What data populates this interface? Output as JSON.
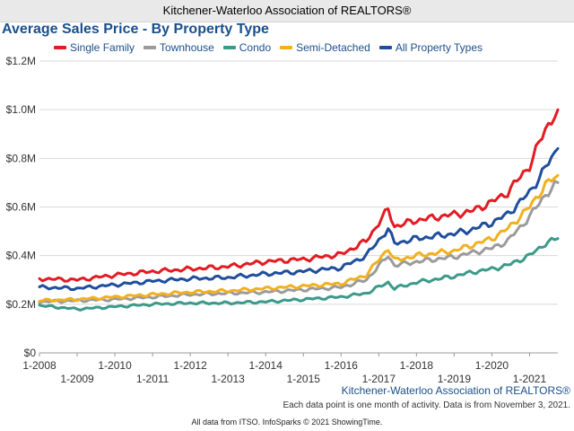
{
  "header": {
    "title": "Kitchener-Waterloo Association of REALTORS®"
  },
  "chart_data": {
    "type": "line",
    "title": "Average Sales Price - By Property Type",
    "ylim": [
      0,
      1200000
    ],
    "y_ticks": [
      0,
      200000,
      400000,
      600000,
      800000,
      1000000,
      1200000
    ],
    "y_tick_labels": [
      "$0",
      "$0.2M",
      "$0.4M",
      "$0.6M",
      "$0.8M",
      "$1.0M",
      "$1.2M"
    ],
    "x_tick_labels_upper": [
      "1-2008",
      "1-2010",
      "1-2012",
      "1-2014",
      "1-2016",
      "1-2018",
      "1-2020"
    ],
    "x_tick_labels_lower": [
      "1-2009",
      "1-2011",
      "1-2013",
      "1-2015",
      "1-2017",
      "1-2019",
      "1-2021"
    ],
    "x_range": [
      "2008-01",
      "2021-10"
    ],
    "grid": "horizontal",
    "legend_position": "top",
    "series": [
      {
        "name": "Single Family",
        "color": "#e31b23",
        "x": [
          "2008-01",
          "2009-01",
          "2010-01",
          "2011-01",
          "2012-01",
          "2013-01",
          "2014-01",
          "2015-01",
          "2016-01",
          "2016-09",
          "2017-04",
          "2017-06",
          "2018-01",
          "2019-01",
          "2019-06",
          "2020-01",
          "2020-06",
          "2021-01",
          "2021-06",
          "2021-10"
        ],
        "values": [
          305000,
          300000,
          320000,
          335000,
          345000,
          355000,
          375000,
          385000,
          405000,
          460000,
          590000,
          520000,
          545000,
          570000,
          580000,
          620000,
          660000,
          770000,
          920000,
          1000000
        ]
      },
      {
        "name": "Townhouse",
        "color": "#9b9b9b",
        "x": [
          "2008-01",
          "2009-01",
          "2010-01",
          "2011-01",
          "2012-01",
          "2013-01",
          "2014-01",
          "2015-01",
          "2016-01",
          "2016-09",
          "2017-04",
          "2017-06",
          "2018-01",
          "2019-01",
          "2019-06",
          "2020-01",
          "2020-06",
          "2021-01",
          "2021-06",
          "2021-10"
        ],
        "values": [
          210000,
          215000,
          220000,
          230000,
          240000,
          245000,
          250000,
          260000,
          270000,
          300000,
          400000,
          360000,
          375000,
          395000,
          410000,
          430000,
          460000,
          560000,
          650000,
          700000
        ]
      },
      {
        "name": "Condo",
        "color": "#3c9a8a",
        "x": [
          "2008-01",
          "2009-01",
          "2010-01",
          "2011-01",
          "2012-01",
          "2013-01",
          "2014-01",
          "2015-01",
          "2016-01",
          "2016-09",
          "2017-04",
          "2017-06",
          "2018-01",
          "2019-01",
          "2019-06",
          "2020-01",
          "2020-06",
          "2021-01",
          "2021-06",
          "2021-10"
        ],
        "values": [
          195000,
          180000,
          190000,
          200000,
          205000,
          205000,
          210000,
          220000,
          230000,
          245000,
          290000,
          265000,
          290000,
          315000,
          330000,
          345000,
          360000,
          400000,
          450000,
          470000
        ]
      },
      {
        "name": "Semi-Detached",
        "color": "#f2b01e",
        "x": [
          "2008-01",
          "2009-01",
          "2010-01",
          "2011-01",
          "2012-01",
          "2013-01",
          "2014-01",
          "2015-01",
          "2016-01",
          "2016-09",
          "2017-04",
          "2017-06",
          "2018-01",
          "2019-01",
          "2019-06",
          "2020-01",
          "2020-06",
          "2021-01",
          "2021-06",
          "2021-10"
        ],
        "values": [
          215000,
          220000,
          230000,
          240000,
          250000,
          255000,
          265000,
          275000,
          285000,
          320000,
          430000,
          380000,
          400000,
          420000,
          440000,
          470000,
          510000,
          600000,
          690000,
          730000
        ]
      },
      {
        "name": "All Property Types",
        "color": "#1f4e9c",
        "x": [
          "2008-01",
          "2009-01",
          "2010-01",
          "2011-01",
          "2012-01",
          "2013-01",
          "2014-01",
          "2015-01",
          "2016-01",
          "2016-09",
          "2017-04",
          "2017-06",
          "2018-01",
          "2019-01",
          "2019-06",
          "2020-01",
          "2020-06",
          "2021-01",
          "2021-06",
          "2021-10"
        ],
        "values": [
          270000,
          265000,
          280000,
          295000,
          305000,
          310000,
          325000,
          335000,
          350000,
          400000,
          510000,
          450000,
          470000,
          490000,
          505000,
          535000,
          570000,
          660000,
          760000,
          840000
        ]
      }
    ]
  },
  "footer": {
    "brand": "Kitchener-Waterloo Association of REALTORS®",
    "note": "Each data point is one month of activity. Data is from November 3, 2021.",
    "credit": "All data from ITSO. InfoSparks © 2021 ShowingTime."
  }
}
